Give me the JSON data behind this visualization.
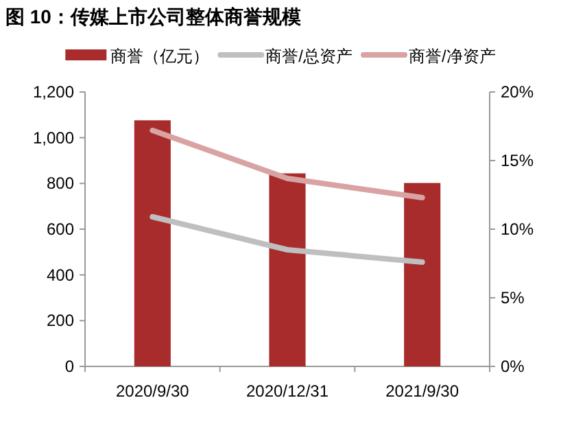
{
  "chart_data": {
    "type": "bar",
    "title": "图 10：传媒上市公司整体商誉规模",
    "categories": [
      "2020/9/30",
      "2020/12/31",
      "2021/9/30"
    ],
    "series": [
      {
        "name": "商誉（亿元）",
        "color": "#a82c2c",
        "values": [
          1076,
          844,
          802
        ]
      },
      {
        "name": "商誉/总资产",
        "type": "line",
        "axis": "y2",
        "color": "#bfbfbf",
        "values": [
          10.9,
          8.5,
          7.6
        ]
      },
      {
        "name": "商誉/净资产",
        "type": "line",
        "axis": "y2",
        "color": "#d9a3a3",
        "values": [
          17.2,
          13.7,
          12.3
        ]
      }
    ],
    "ylim": [
      0,
      1200
    ],
    "yticks": [
      0,
      200,
      400,
      600,
      800,
      {
        "value": 1000,
        "label": "1,000"
      },
      {
        "value": 1200,
        "label": "1,200"
      }
    ],
    "y2lim": [
      0,
      20
    ],
    "y2ticks": [
      {
        "value": 0,
        "label": "0%"
      },
      {
        "value": 5,
        "label": "5%"
      },
      {
        "value": 10,
        "label": "10%"
      },
      {
        "value": 15,
        "label": "15%"
      },
      {
        "value": 20,
        "label": "20%"
      }
    ],
    "legend": "top",
    "grid": false,
    "marker": "none",
    "line_style": "solid"
  }
}
